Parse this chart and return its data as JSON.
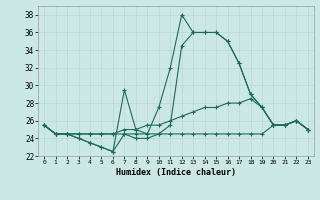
{
  "xlabel": "Humidex (Indice chaleur)",
  "xlim": [
    -0.5,
    23.5
  ],
  "ylim": [
    22,
    39
  ],
  "yticks": [
    22,
    24,
    26,
    28,
    30,
    32,
    34,
    36,
    38
  ],
  "xticks": [
    0,
    1,
    2,
    3,
    4,
    5,
    6,
    7,
    8,
    9,
    10,
    11,
    12,
    13,
    14,
    15,
    16,
    17,
    18,
    19,
    20,
    21,
    22,
    23
  ],
  "bg_color": "#cce8e4",
  "line_color": "#1a6b5a",
  "grid_color": "#b8d8d4",
  "series": [
    [
      25.5,
      24.5,
      24.5,
      24.0,
      23.5,
      23.0,
      22.5,
      29.5,
      25.0,
      24.5,
      27.5,
      32.0,
      38.0,
      36.0,
      36.0,
      36.0,
      35.0,
      32.5,
      29.0,
      27.5,
      25.5,
      25.5,
      26.0,
      25.0
    ],
    [
      25.5,
      24.5,
      24.5,
      24.0,
      23.5,
      23.0,
      22.5,
      24.5,
      24.0,
      24.0,
      24.5,
      25.5,
      34.5,
      36.0,
      36.0,
      36.0,
      35.0,
      32.5,
      29.0,
      27.5,
      25.5,
      25.5,
      26.0,
      25.0
    ],
    [
      25.5,
      24.5,
      24.5,
      24.5,
      24.5,
      24.5,
      24.5,
      25.0,
      25.0,
      25.5,
      25.5,
      26.0,
      26.5,
      27.0,
      27.5,
      27.5,
      28.0,
      28.0,
      28.5,
      27.5,
      25.5,
      25.5,
      26.0,
      25.0
    ],
    [
      25.5,
      24.5,
      24.5,
      24.5,
      24.5,
      24.5,
      24.5,
      24.5,
      24.5,
      24.5,
      24.5,
      24.5,
      24.5,
      24.5,
      24.5,
      24.5,
      24.5,
      24.5,
      24.5,
      24.5,
      25.5,
      25.5,
      26.0,
      25.0
    ]
  ]
}
